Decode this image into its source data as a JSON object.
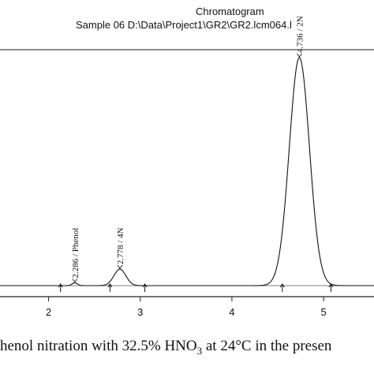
{
  "chart_data": {
    "type": "line",
    "title": "Chromatogram",
    "subtitle": "Sample 06 D:\\Data\\Project1\\GR2\\GR2.lcm064.l",
    "xlabel": "",
    "ylabel": "",
    "x_ticks": [
      2,
      3,
      4,
      5
    ],
    "xlim": [
      1.47,
      5.55
    ],
    "ylim": [
      0,
      100
    ],
    "grid": false,
    "legend": "none",
    "series": [
      {
        "peaks": [
          {
            "rt": 2.286,
            "height": 1.2,
            "width": 0.03
          },
          {
            "rt": 2.778,
            "height": 7.2,
            "width": 0.065
          },
          {
            "rt": 4.736,
            "height": 100,
            "width": 0.11
          }
        ]
      }
    ],
    "peak_labels": [
      {
        "x": 2.286,
        "text": "2.286 / Phenol"
      },
      {
        "x": 2.778,
        "text": "2.778 / 4N"
      },
      {
        "x": 4.736,
        "text": "4.736 / 2N"
      }
    ],
    "integration_markers": [
      2.13,
      2.67,
      3.05,
      4.55,
      5.08
    ]
  },
  "caption": {
    "pre": "henol nitration with 32.5% HNO",
    "sub": "3",
    "post": " at 24°C in the presen"
  }
}
